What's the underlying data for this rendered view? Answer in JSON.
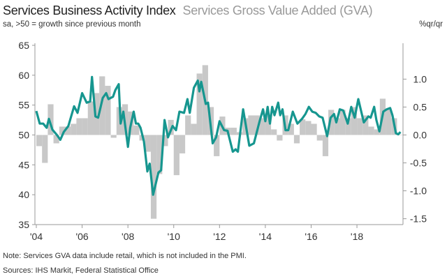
{
  "header": {
    "title": "Services Business Activity Index",
    "title_secondary": "Services Gross Value Added (GVA)",
    "subtitle": "sa, >50 = growth since previous month",
    "right_unit": "%qr/qr"
  },
  "footer": {
    "note": "Note: Services GVA data include retail, which is not included in the PMI.",
    "sources": "Sources: IHS Markit, Federal Statistical Office"
  },
  "colors": {
    "line": "#16968f",
    "bars": "#c8c8c8",
    "axis": "#999999"
  },
  "chart_data": {
    "type": "bar+line",
    "title": "Services Business Activity Index / Services Gross Value Added (GVA)",
    "x_ticks": [
      "'04",
      "'06",
      "'08",
      "'10",
      "'12",
      "'14",
      "'16",
      "'18"
    ],
    "x_tick_years": [
      2004,
      2006,
      2008,
      2010,
      2012,
      2014,
      2016,
      2018
    ],
    "xlim": [
      2004,
      2019.95
    ],
    "left_axis": {
      "label": "sa, >50 = growth since previous month",
      "ylim": [
        35,
        65
      ],
      "ticks": [
        "35",
        "40",
        "45",
        "50",
        "55",
        "60",
        "65"
      ],
      "tick_values": [
        35,
        40,
        45,
        50,
        55,
        60,
        65
      ]
    },
    "right_axis": {
      "label": "%qr/qr",
      "ylim": [
        -1.5,
        1.25
      ],
      "ticks": [
        "-1.5",
        "-1.0",
        "-0.5",
        "0.0",
        "0.5",
        "1.0"
      ],
      "tick_values": [
        -1.5,
        -1.0,
        -0.5,
        0.0,
        0.5,
        1.0
      ]
    },
    "series": [
      {
        "name": "Services Gross Value Added (GVA)",
        "type": "bar",
        "axis": "right",
        "start": 2004,
        "freq": "quarterly",
        "values": [
          -0.2,
          -0.5,
          0.55,
          -0.15,
          0.15,
          0.15,
          0.2,
          0.3,
          0.3,
          0.6,
          0.75,
          1.05,
          0.88,
          -0.05,
          0.5,
          0.55,
          0.42,
          0.17,
          -0.1,
          -0.3,
          -1.5,
          -0.7,
          -0.2,
          0.27,
          -0.72,
          -0.33,
          0.35,
          0.2,
          1.1,
          1.25,
          0.5,
          -0.38,
          0.33,
          0.13,
          0.13,
          0.05,
          0.3,
          0.35,
          0.35,
          0.3,
          0.35,
          0.1,
          -0.1,
          0.35,
          0.2,
          -0.15,
          0.28,
          0.25,
          0.2,
          -0.1,
          -0.38,
          0.45,
          0.3,
          0.45,
          0.3,
          0.5,
          0.3,
          0.35,
          0.15,
          0.1,
          0.65,
          0.45,
          0.3,
          0.0
        ]
      },
      {
        "name": "Services Business Activity Index",
        "type": "line",
        "axis": "left",
        "x": [
          2004.0,
          2004.15,
          2004.3,
          2004.45,
          2004.55,
          2004.7,
          2004.9,
          2005.05,
          2005.2,
          2005.4,
          2005.65,
          2005.8,
          2006.0,
          2006.2,
          2006.35,
          2006.43,
          2006.58,
          2006.7,
          2006.9,
          2007.05,
          2007.15,
          2007.35,
          2007.45,
          2007.6,
          2007.68,
          2007.8,
          2008.0,
          2008.1,
          2008.25,
          2008.35,
          2008.45,
          2008.55,
          2008.7,
          2008.85,
          2008.95,
          2009.1,
          2009.33,
          2009.45,
          2009.6,
          2009.75,
          2009.95,
          2010.1,
          2010.25,
          2010.45,
          2010.6,
          2010.7,
          2010.88,
          2011.05,
          2011.12,
          2011.2,
          2011.4,
          2011.5,
          2011.7,
          2011.85,
          2012.0,
          2012.2,
          2012.35,
          2012.58,
          2012.7,
          2012.8,
          2013.03,
          2013.3,
          2013.5,
          2013.75,
          2013.9,
          2014.0,
          2014.1,
          2014.2,
          2014.3,
          2014.4,
          2014.56,
          2014.65,
          2014.75,
          2014.88,
          2015.0,
          2015.2,
          2015.4,
          2015.6,
          2015.75,
          2015.9,
          2016.05,
          2016.2,
          2016.35,
          2016.5,
          2016.7,
          2016.85,
          2017.0,
          2017.1,
          2017.25,
          2017.4,
          2017.6,
          2017.75,
          2017.9,
          2018.06,
          2018.3,
          2018.5,
          2018.6,
          2018.75,
          2018.85,
          2018.98,
          2019.15,
          2019.3,
          2019.45,
          2019.55,
          2019.7,
          2019.8,
          2019.9
        ],
        "values": [
          54.0,
          51.9,
          51.9,
          51.2,
          52.7,
          50.9,
          50.0,
          49.2,
          50.5,
          51.5,
          54.8,
          53.7,
          57.0,
          55.4,
          55.6,
          59.7,
          53.1,
          52.9,
          56.2,
          57.0,
          56.0,
          56.4,
          57.5,
          58.5,
          51.9,
          53.9,
          48.0,
          51.2,
          53.9,
          51.9,
          51.9,
          51.2,
          48.9,
          43.9,
          45.2,
          40.0,
          43.7,
          44.1,
          52.5,
          49.6,
          51.5,
          50.8,
          53.9,
          53.7,
          56.0,
          53.7,
          57.9,
          59.1,
          57.3,
          58.9,
          55.2,
          55.4,
          48.6,
          49.6,
          52.3,
          50.8,
          50.7,
          47.2,
          47.6,
          47.2,
          54.3,
          48.2,
          48.6,
          52.3,
          54.3,
          52.3,
          54.7,
          51.9,
          54.7,
          53.3,
          55.4,
          53.3,
          54.3,
          50.8,
          50.8,
          53.9,
          51.9,
          52.7,
          53.5,
          54.7,
          53.9,
          53.7,
          53.1,
          52.9,
          49.8,
          52.9,
          53.5,
          52.1,
          54.3,
          54.1,
          51.9,
          54.7,
          52.9,
          56.0,
          52.1,
          53.1,
          52.9,
          54.7,
          52.5,
          50.6,
          53.9,
          54.3,
          54.5,
          53.3,
          50.3,
          50.1,
          50.5
        ]
      }
    ],
    "legend": "title-colored (left title = line, right title = bars)",
    "grid": false
  }
}
